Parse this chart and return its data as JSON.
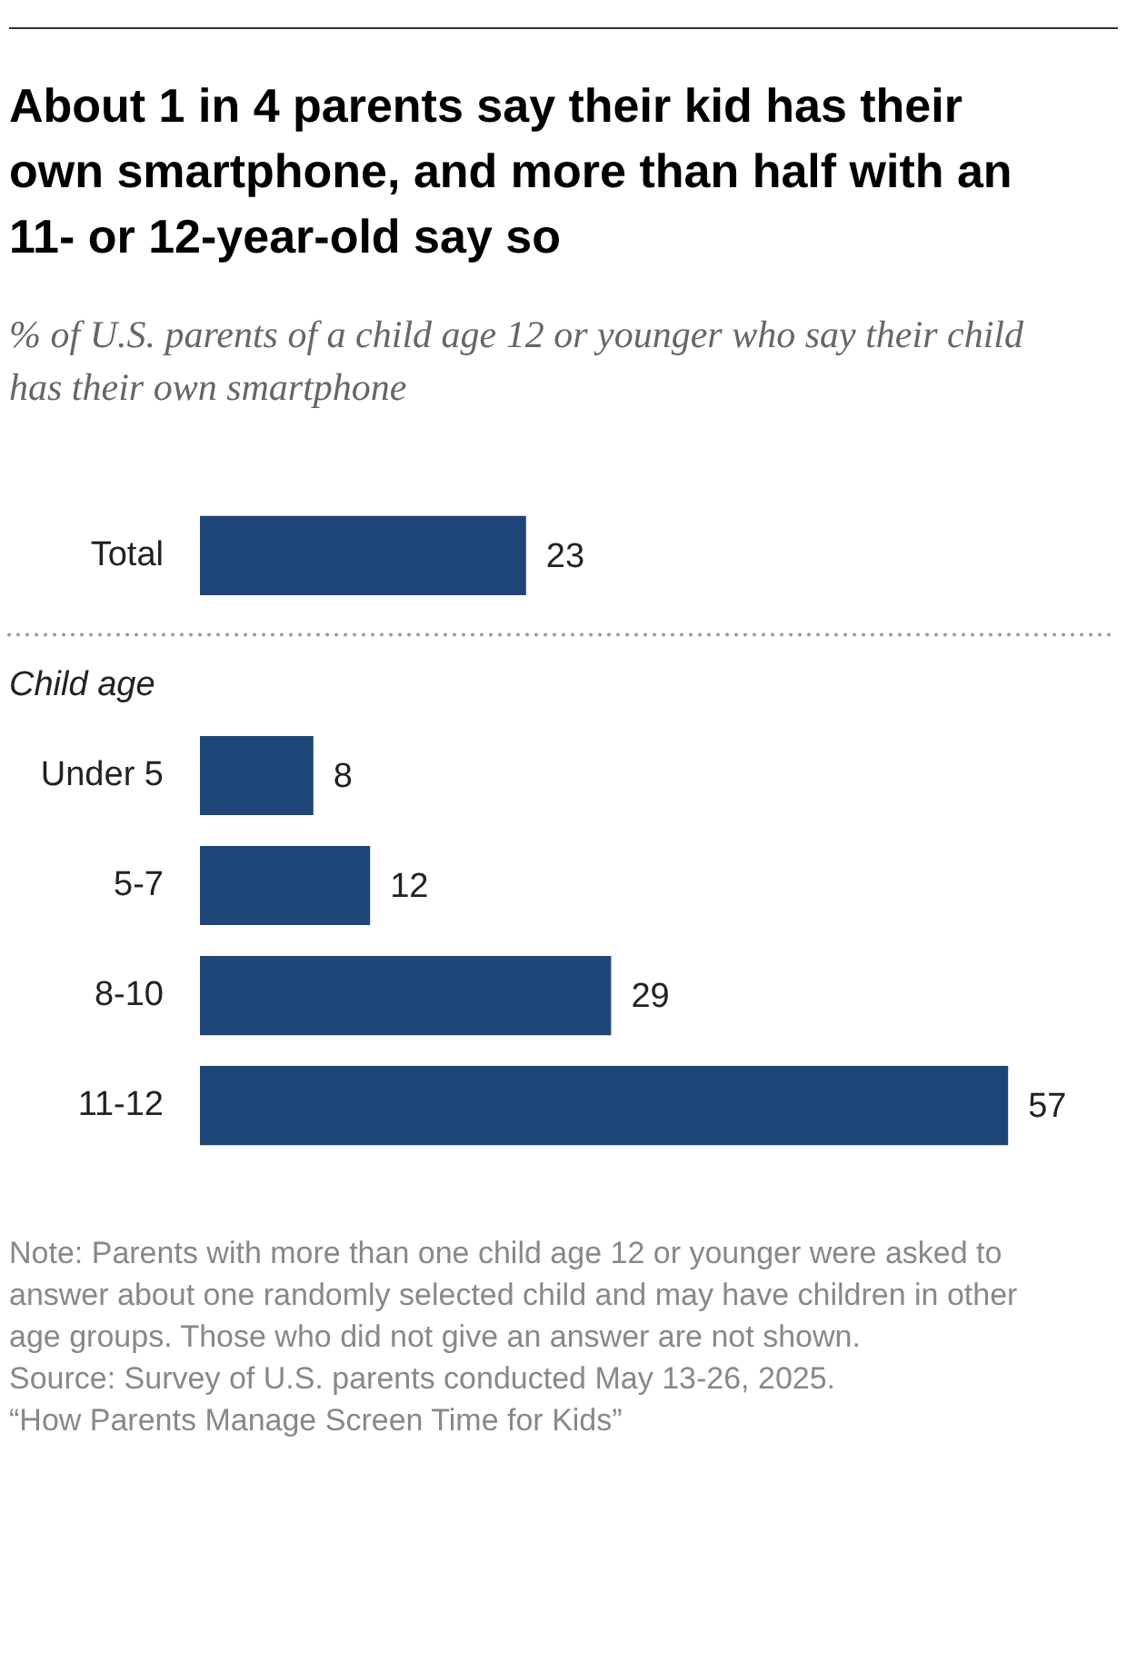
{
  "chart_data": {
    "type": "bar",
    "orientation": "horizontal",
    "title": "About 1 in 4 parents say their kid has their own smartphone, and more than half with an 11- or 12-year-old say so",
    "subtitle": "% of U.S. parents of a child age 12 or younger who say their child has their own smartphone",
    "categories": [
      "Total",
      null,
      "Under 5",
      "5-7",
      "8-10",
      "11-12"
    ],
    "values": [
      23,
      null,
      8,
      12,
      29,
      57
    ],
    "color": "#1f4678",
    "tick_labels": "y",
    "legend": false,
    "data_labels": true,
    "annotations": [
      "Child age",
      "Note: Parents with more than one child age 12 or younger were asked to answer about one randomly selected child and may have children in other age groups. Those who did not give an answer are not shown.",
      "Source: Survey of U.S. parents conducted May 13-26, 2025.",
      "“How Parents Manage Screen Time for Kids”"
    ]
  }
}
